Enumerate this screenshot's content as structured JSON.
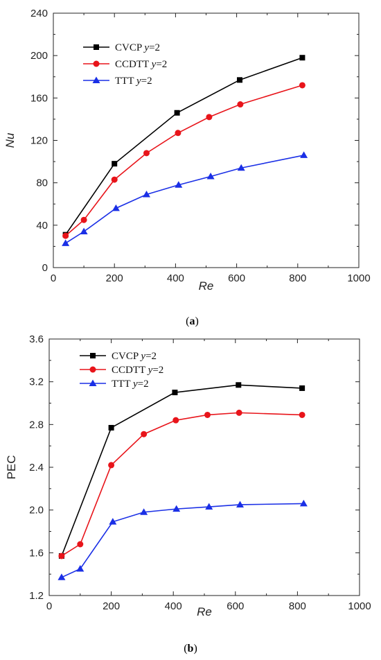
{
  "chart_data": [
    {
      "type": "line",
      "caption": "a",
      "xlabel": "Re",
      "ylabel": "Nu",
      "xlim": [
        0,
        1000
      ],
      "ylim": [
        0,
        240
      ],
      "xticks": [
        0,
        200,
        400,
        600,
        800,
        1000
      ],
      "yticks": [
        0,
        40,
        80,
        120,
        160,
        200,
        240
      ],
      "legend_position": "top-left",
      "series": [
        {
          "name": "CVCP",
          "suffix": "=2",
          "marker": "square",
          "color": "#000000",
          "x": [
            40,
            200,
            405,
            610,
            815
          ],
          "y": [
            31,
            98,
            146,
            177,
            198
          ]
        },
        {
          "name": "CCDTT",
          "suffix": "=2",
          "marker": "circle",
          "color": "#e8141a",
          "x": [
            40,
            100,
            200,
            305,
            408,
            510,
            612,
            815
          ],
          "y": [
            30,
            45,
            83,
            108,
            127,
            142,
            154,
            172
          ]
        },
        {
          "name": "TTT",
          "suffix": "=2",
          "marker": "triangle",
          "color": "#1a2fe6",
          "x": [
            40,
            100,
            205,
            305,
            410,
            515,
            615,
            820
          ],
          "y": [
            23,
            34,
            56,
            69,
            78,
            86,
            94,
            106
          ]
        }
      ]
    },
    {
      "type": "line",
      "caption": "b",
      "xlabel": "Re",
      "ylabel": "PEC",
      "xlim": [
        0,
        1000
      ],
      "ylim": [
        1.2,
        3.6
      ],
      "xticks": [
        0,
        200,
        400,
        600,
        800,
        1000
      ],
      "yticks": [
        1.2,
        1.6,
        2.0,
        2.4,
        2.8,
        3.2,
        3.6
      ],
      "legend_position": "top-left",
      "series": [
        {
          "name": "CVCP",
          "suffix": "=2",
          "marker": "square",
          "color": "#000000",
          "x": [
            40,
            200,
            405,
            610,
            815
          ],
          "y": [
            1.57,
            2.77,
            3.1,
            3.17,
            3.14
          ]
        },
        {
          "name": "CCDTT",
          "suffix": "=2",
          "marker": "circle",
          "color": "#e8141a",
          "x": [
            40,
            100,
            200,
            305,
            408,
            510,
            612,
            815
          ],
          "y": [
            1.57,
            1.68,
            2.42,
            2.71,
            2.84,
            2.89,
            2.91,
            2.89
          ]
        },
        {
          "name": "TTT",
          "suffix": "=2",
          "marker": "triangle",
          "color": "#1a2fe6",
          "x": [
            40,
            100,
            205,
            305,
            410,
            515,
            615,
            820
          ],
          "y": [
            1.37,
            1.45,
            1.89,
            1.98,
            2.01,
            2.03,
            2.05,
            2.06
          ]
        }
      ]
    }
  ]
}
